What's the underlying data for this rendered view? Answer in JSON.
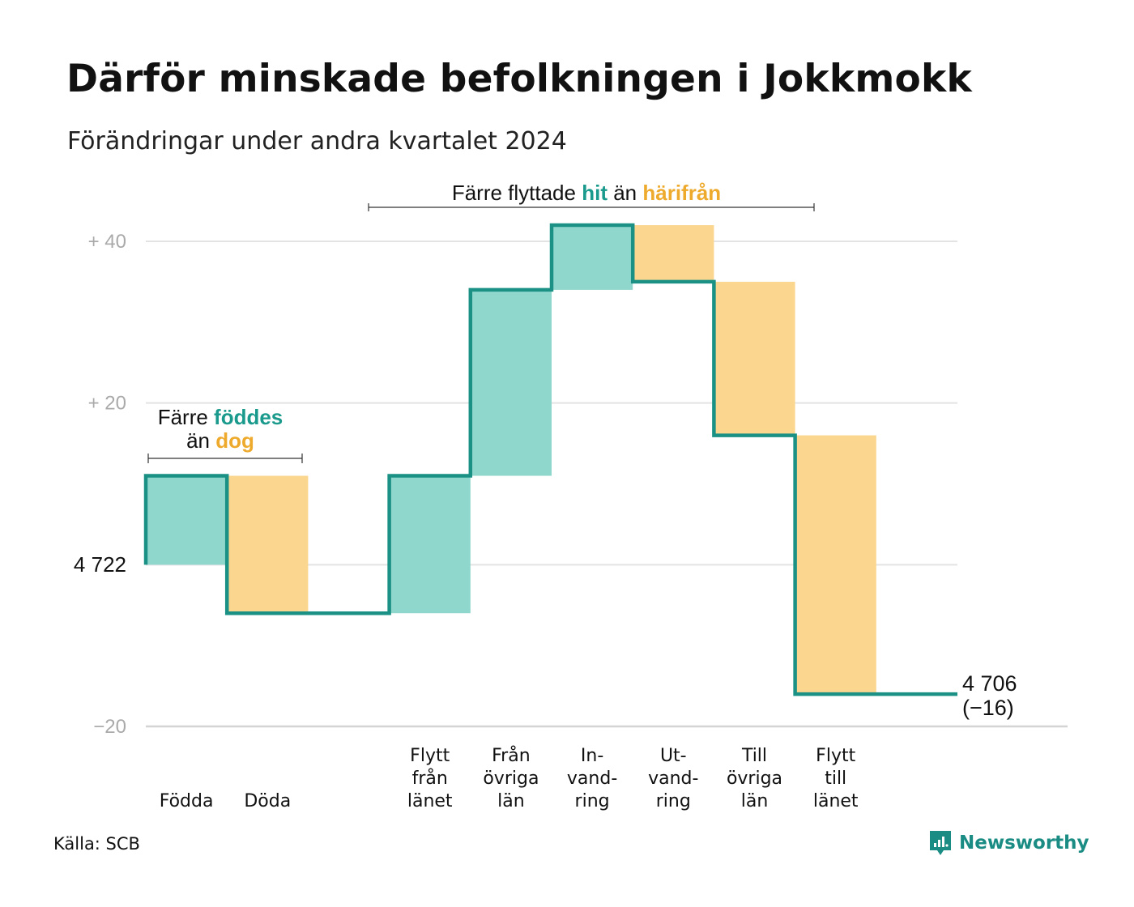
{
  "title": "Därför minskade befolkningen i Jokkmokk",
  "subtitle": "Förändringar under andra kvartalet 2024",
  "source": "Källa: SCB",
  "brand": "Newsworthy",
  "colors": {
    "increase": "#8fd6cc",
    "decrease": "#fad68f",
    "line": "#1a9184",
    "teal_text": "#1a9a8c",
    "orange_text": "#eeaa2c",
    "grid": "#e3e3e3",
    "tick": "#aaaaaa"
  },
  "annotations": {
    "births": {
      "pre": "Färre ",
      "hl1": "föddes",
      "mid": "än ",
      "hl2": "dog"
    },
    "moves": {
      "pre": "Färre flyttade ",
      "hl1": "hit",
      "mid": " än ",
      "hl2": "härifrån"
    }
  },
  "chart_data": {
    "type": "waterfall",
    "start": 4722,
    "start_label": "4 722",
    "end": 4706,
    "end_label": "4 706",
    "end_change_label": "(−16)",
    "y_ticks": [
      {
        "value": 40,
        "label": "+  40"
      },
      {
        "value": 20,
        "label": "+  20"
      },
      {
        "value": 0,
        "label": ""
      },
      {
        "value": -20,
        "label": "−20"
      }
    ],
    "ylim": [
      -20,
      40
    ],
    "categories": [
      {
        "label": [
          "Födda"
        ],
        "change": 11
      },
      {
        "label": [
          "Döda"
        ],
        "change": -17
      },
      {
        "label": [],
        "change": 0
      },
      {
        "label": [
          "Flytt",
          "från",
          "länet"
        ],
        "change": 17
      },
      {
        "label": [
          "Från",
          "övriga",
          "län"
        ],
        "change": 23
      },
      {
        "label": [
          "In-",
          "vand-",
          "ring"
        ],
        "change": 8
      },
      {
        "label": [
          "Ut-",
          "vand-",
          "ring"
        ],
        "change": -7
      },
      {
        "label": [
          "Till",
          "övriga",
          "län"
        ],
        "change": -19
      },
      {
        "label": [
          "Flytt",
          "till",
          "länet"
        ],
        "change": -32
      },
      {
        "label": [],
        "change": 0
      }
    ]
  }
}
